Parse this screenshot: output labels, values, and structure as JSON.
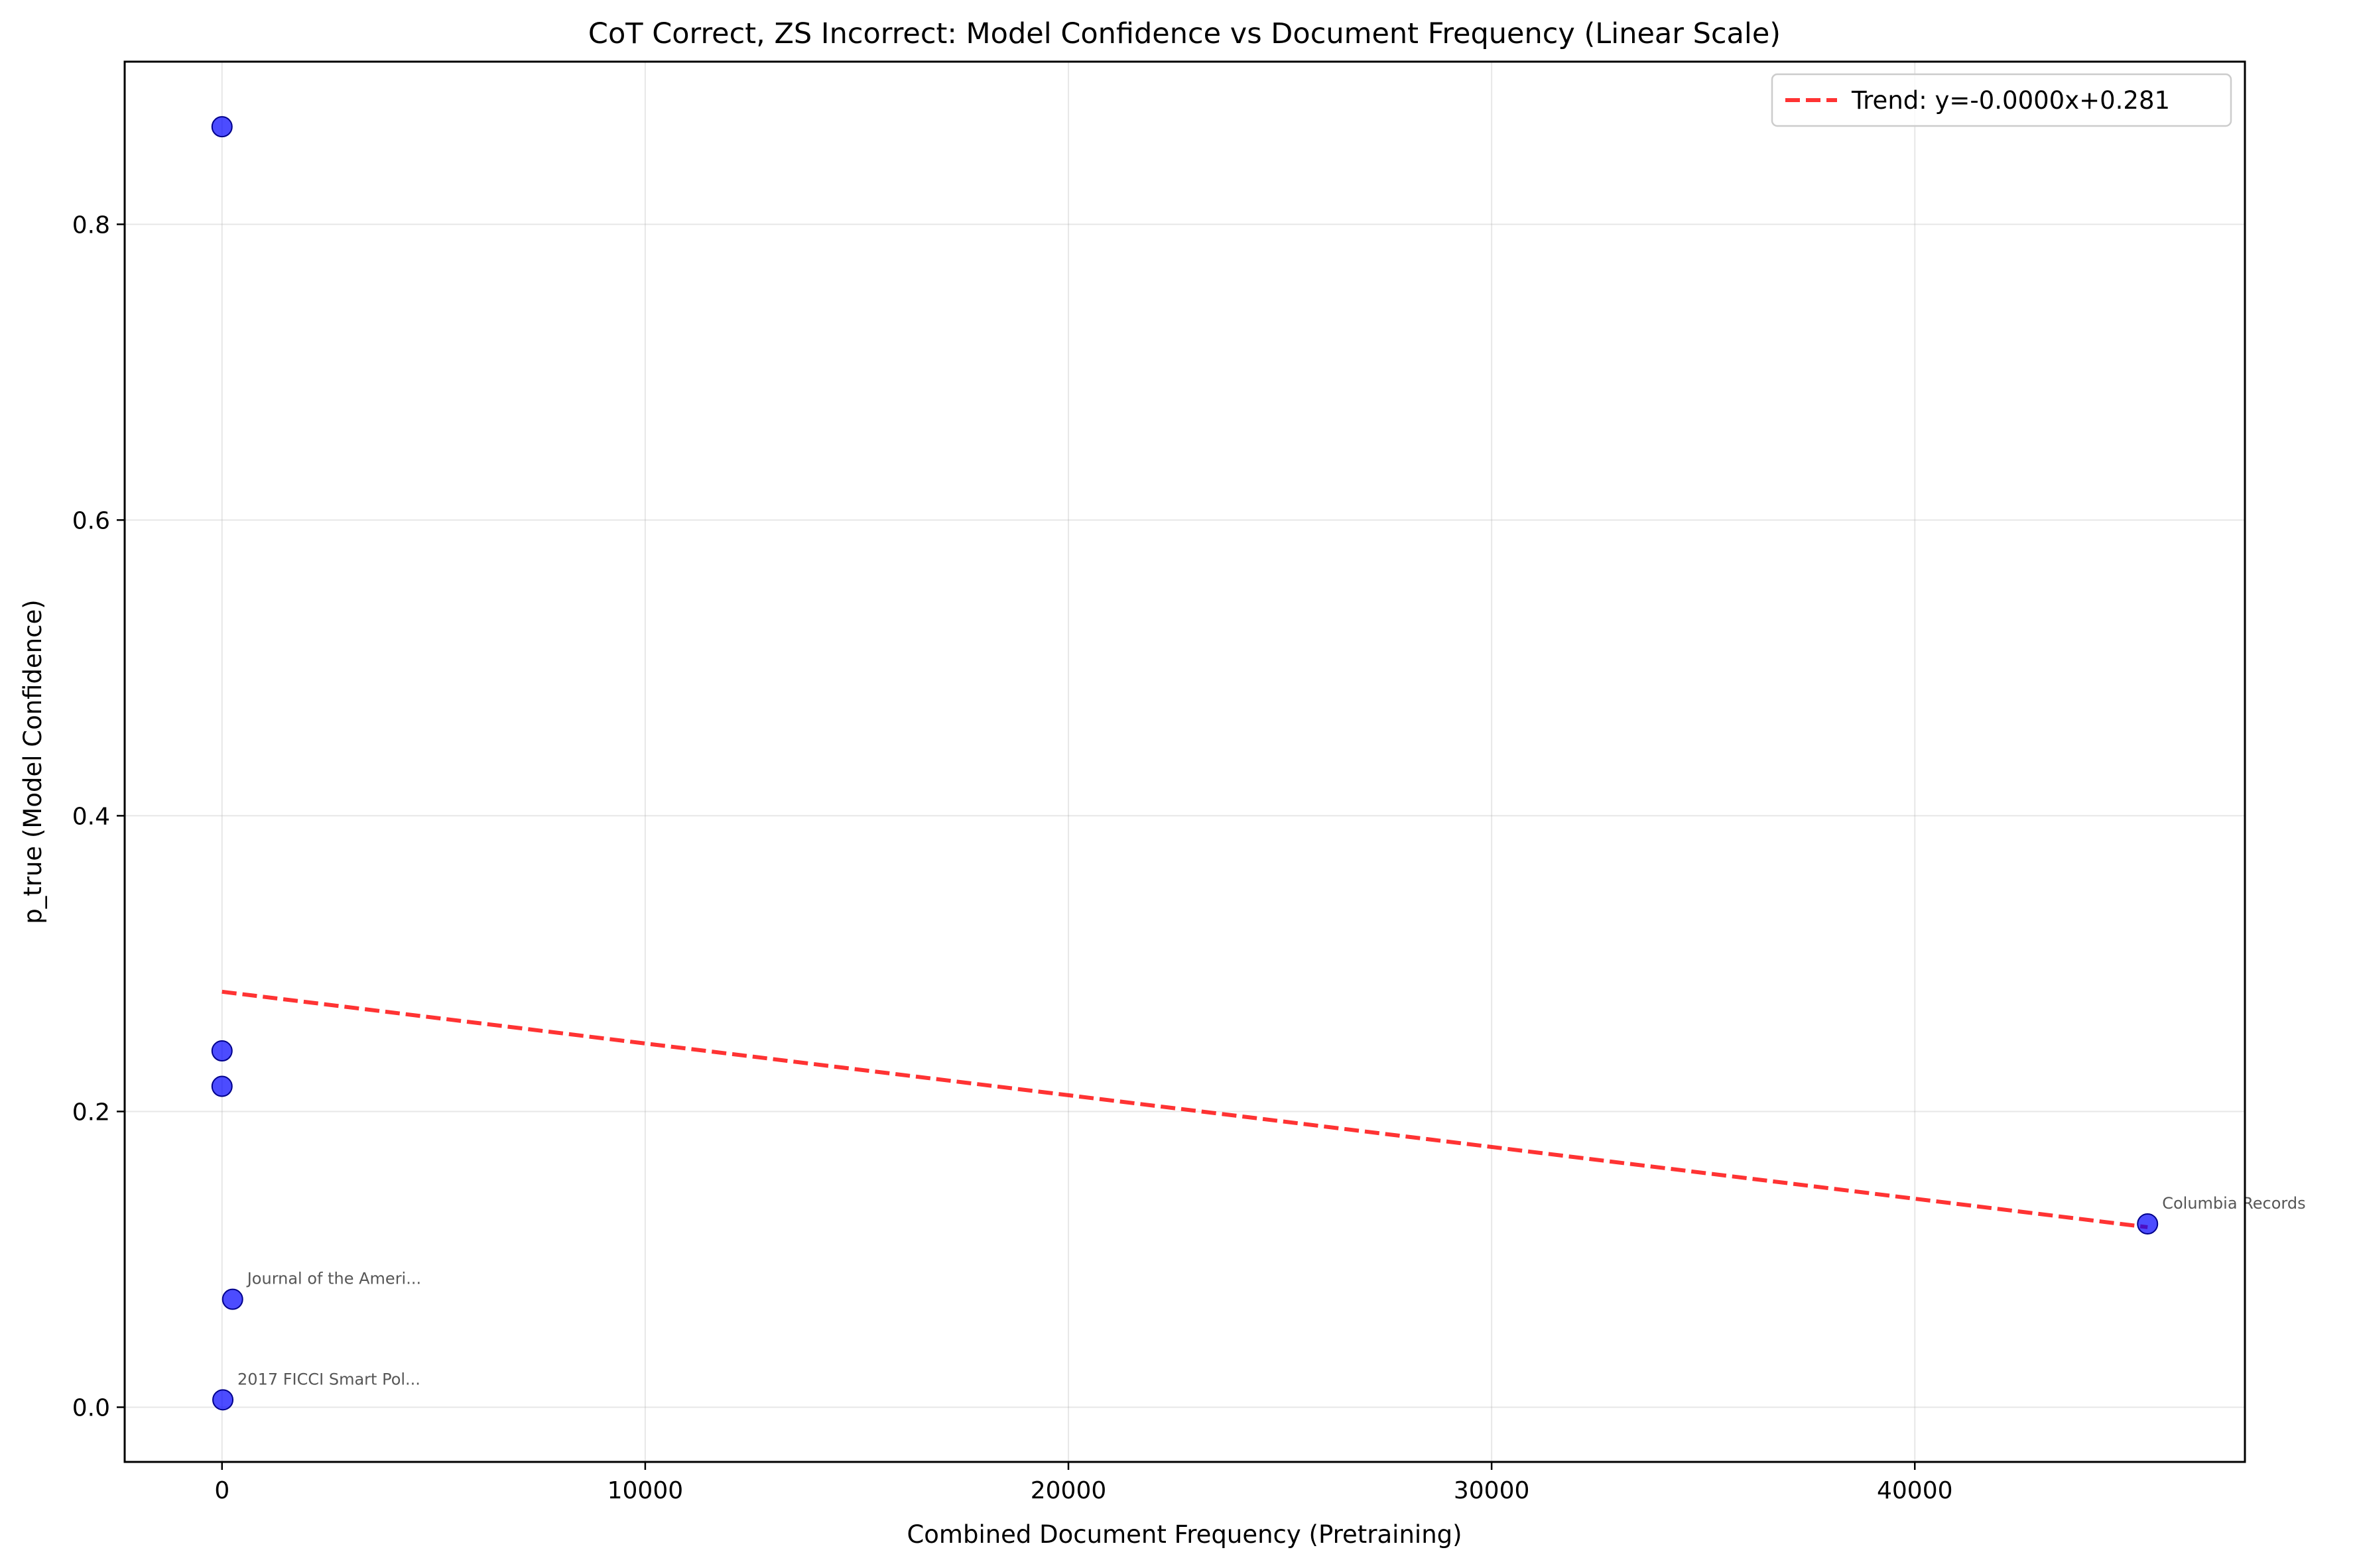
{
  "chart_data": {
    "type": "scatter",
    "title": "CoT Correct, ZS Incorrect: Model Confidence vs Document Frequency (Linear Scale)",
    "xlabel": "Combined Document Frequency (Pretraining)",
    "ylabel": "p_true (Model Confidence)",
    "xlim": [
      -2300,
      47800
    ],
    "ylim": [
      -0.037,
      0.91
    ],
    "xticks": [
      0,
      10000,
      20000,
      30000,
      40000
    ],
    "xtick_labels": [
      "0",
      "10000",
      "20000",
      "30000",
      "40000"
    ],
    "yticks": [
      0.0,
      0.2,
      0.4,
      0.6,
      0.8
    ],
    "ytick_labels": [
      "0.0",
      "0.2",
      "0.4",
      "0.6",
      "0.8"
    ],
    "grid": true,
    "points": [
      {
        "x": 0,
        "y": 0.866,
        "label": ""
      },
      {
        "x": 0,
        "y": 0.241,
        "label": ""
      },
      {
        "x": 0,
        "y": 0.217,
        "label": ""
      },
      {
        "x": 250,
        "y": 0.073,
        "label": "Journal of the Ameri..."
      },
      {
        "x": 20,
        "y": 0.005,
        "label": "2017 FICCI Smart Pol..."
      },
      {
        "x": 45500,
        "y": 0.124,
        "label": "Columbia Records"
      }
    ],
    "point_color": "#0000ff",
    "trend": {
      "slope": -3.5e-06,
      "intercept": 0.281,
      "x_range": [
        0,
        45500
      ],
      "color": "#ff0000",
      "label": "Trend: y=-0.0000x+0.281"
    },
    "legend_location": "top-right"
  }
}
